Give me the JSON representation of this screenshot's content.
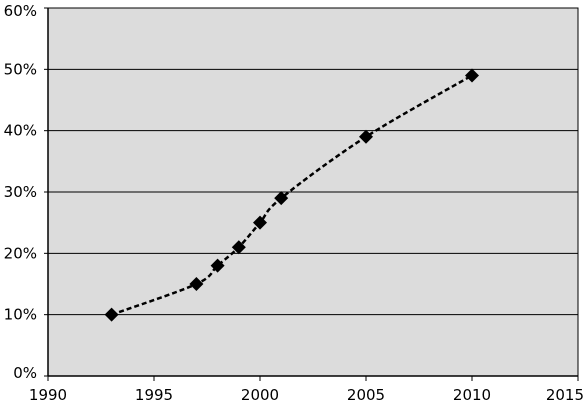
{
  "chart_data": {
    "type": "line",
    "title": "",
    "xlabel": "",
    "ylabel": "",
    "xlim": [
      1990,
      2015
    ],
    "ylim": [
      0,
      60
    ],
    "x_ticks": [
      1990,
      1995,
      2000,
      2005,
      2010,
      2015
    ],
    "x_tick_labels": [
      "1990",
      "1995",
      "2000",
      "2005",
      "2010",
      "2015"
    ],
    "y_ticks": [
      0,
      10,
      20,
      30,
      40,
      50,
      60
    ],
    "y_tick_labels": [
      "0%",
      "10%",
      "20%",
      "30%",
      "40%",
      "50%",
      "60%"
    ],
    "grid": {
      "horizontal": true,
      "vertical": false
    },
    "legend": "none",
    "colors": {
      "plot_background": "#dcdcdc",
      "gridline": "#000000",
      "series": "#000000"
    },
    "marker": "diamond",
    "line_style": "dashed",
    "smooth": true,
    "series": [
      {
        "x": [
          1993,
          1997,
          1998,
          1999,
          2000,
          2001,
          2005,
          2010
        ],
        "y": [
          10,
          15,
          18,
          21,
          25,
          29,
          39,
          49
        ]
      }
    ]
  }
}
